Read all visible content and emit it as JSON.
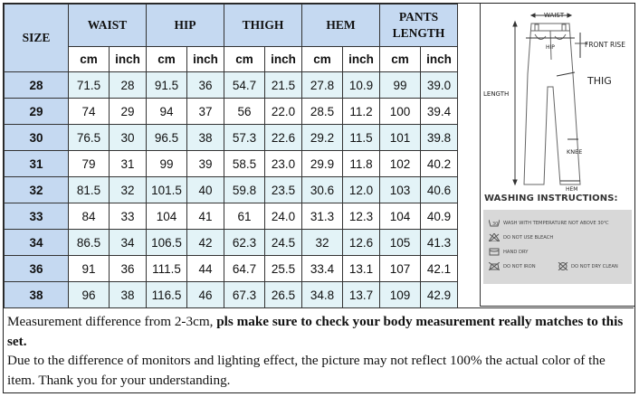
{
  "headers": {
    "size": "SIZE",
    "waist": "WAIST",
    "hip": "HIP",
    "thigh": "THIGH",
    "hem": "HEM",
    "pants_length_1": "PANTS",
    "pants_length_2": "LENGTH",
    "cm": "cm",
    "inch": "inch"
  },
  "rows": [
    {
      "size": "28",
      "waist_cm": "71.5",
      "waist_in": "28",
      "hip_cm": "91.5",
      "hip_in": "36",
      "thigh_cm": "54.7",
      "thigh_in": "21.5",
      "hem_cm": "27.8",
      "hem_in": "10.9",
      "len_cm": "99",
      "len_in": "39.0"
    },
    {
      "size": "29",
      "waist_cm": "74",
      "waist_in": "29",
      "hip_cm": "94",
      "hip_in": "37",
      "thigh_cm": "56",
      "thigh_in": "22.0",
      "hem_cm": "28.5",
      "hem_in": "11.2",
      "len_cm": "100",
      "len_in": "39.4"
    },
    {
      "size": "30",
      "waist_cm": "76.5",
      "waist_in": "30",
      "hip_cm": "96.5",
      "hip_in": "38",
      "thigh_cm": "57.3",
      "thigh_in": "22.6",
      "hem_cm": "29.2",
      "hem_in": "11.5",
      "len_cm": "101",
      "len_in": "39.8"
    },
    {
      "size": "31",
      "waist_cm": "79",
      "waist_in": "31",
      "hip_cm": "99",
      "hip_in": "39",
      "thigh_cm": "58.5",
      "thigh_in": "23.0",
      "hem_cm": "29.9",
      "hem_in": "11.8",
      "len_cm": "102",
      "len_in": "40.2"
    },
    {
      "size": "32",
      "waist_cm": "81.5",
      "waist_in": "32",
      "hip_cm": "101.5",
      "hip_in": "40",
      "thigh_cm": "59.8",
      "thigh_in": "23.5",
      "hem_cm": "30.6",
      "hem_in": "12.0",
      "len_cm": "103",
      "len_in": "40.6"
    },
    {
      "size": "33",
      "waist_cm": "84",
      "waist_in": "33",
      "hip_cm": "104",
      "hip_in": "41",
      "thigh_cm": "61",
      "thigh_in": "24.0",
      "hem_cm": "31.3",
      "hem_in": "12.3",
      "len_cm": "104",
      "len_in": "40.9"
    },
    {
      "size": "34",
      "waist_cm": "86.5",
      "waist_in": "34",
      "hip_cm": "106.5",
      "hip_in": "42",
      "thigh_cm": "62.3",
      "thigh_in": "24.5",
      "hem_cm": "32",
      "hem_in": "12.6",
      "len_cm": "105",
      "len_in": "41.3"
    },
    {
      "size": "36",
      "waist_cm": "91",
      "waist_in": "36",
      "hip_cm": "111.5",
      "hip_in": "44",
      "thigh_cm": "64.7",
      "thigh_in": "25.5",
      "hem_cm": "33.4",
      "hem_in": "13.1",
      "len_cm": "107",
      "len_in": "42.1"
    },
    {
      "size": "38",
      "waist_cm": "96",
      "waist_in": "38",
      "hip_cm": "116.5",
      "hip_in": "46",
      "thigh_cm": "67.3",
      "thigh_in": "26.5",
      "hem_cm": "34.8",
      "hem_in": "13.7",
      "len_cm": "109",
      "len_in": "42.9"
    }
  ],
  "diagram": {
    "waist": "WAIST",
    "hip": "HIP",
    "front_rise": "FRONT RISE",
    "length": "LENGTH",
    "thig": "THIG",
    "knee": "KNEE",
    "hem": "HEM"
  },
  "washing": {
    "title": "WASHING INSTRUCTIONS:",
    "temp": "WASH WITH TEMPERATURE NOT ABOVE 30℃",
    "bleach": "DO NOT USE BLEACH",
    "hand_dry": "HAND DRY",
    "iron": "DO NOT IRON",
    "dry_clean": "DO NOT DRY CLEAN"
  },
  "notes": {
    "line1_plain": "Measurement difference from 2-3cm, ",
    "line1_bold": "pls make sure to check your body measurement really matches to this set.",
    "line2": "Due to the difference of monitors and lighting effect, the picture may not reflect 100% the actual color of the item. Thank you for your understanding."
  },
  "colors": {
    "header_blue": "#c5d9f1",
    "row_alt": "#e3f3f7"
  }
}
